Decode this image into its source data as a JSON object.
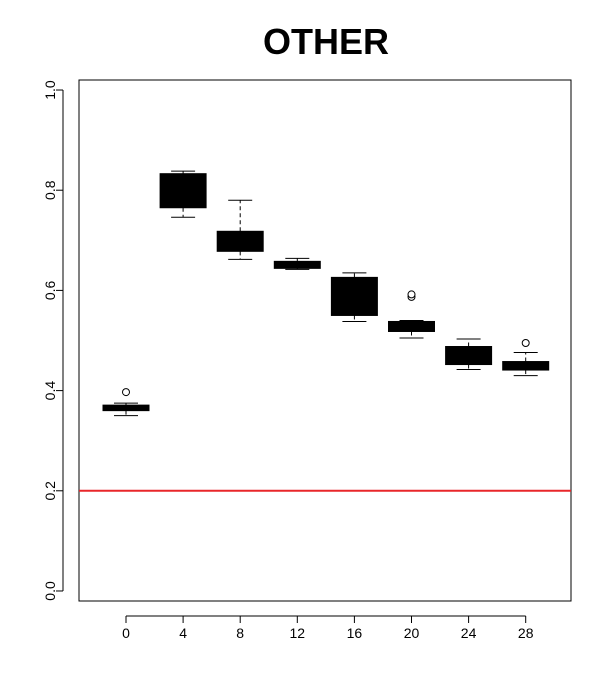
{
  "chart_data": {
    "type": "boxplot",
    "title": "OTHER",
    "xlabel": "",
    "ylabel": "",
    "categories": [
      "0",
      "4",
      "8",
      "12",
      "16",
      "20",
      "24",
      "28"
    ],
    "boxes": [
      {
        "category": "0",
        "whisker_low": 0.35,
        "q1": 0.36,
        "median": 0.365,
        "q3": 0.371,
        "whisker_high": 0.375,
        "outliers": [
          0.397
        ]
      },
      {
        "category": "4",
        "whisker_low": 0.746,
        "q1": 0.765,
        "median": 0.79,
        "q3": 0.833,
        "whisker_high": 0.838,
        "outliers": []
      },
      {
        "category": "8",
        "whisker_low": 0.662,
        "q1": 0.678,
        "median": 0.695,
        "q3": 0.718,
        "whisker_high": 0.78,
        "outliers": []
      },
      {
        "category": "12",
        "whisker_low": 0.642,
        "q1": 0.644,
        "median": 0.648,
        "q3": 0.658,
        "whisker_high": 0.664,
        "outliers": []
      },
      {
        "category": "16",
        "whisker_low": 0.538,
        "q1": 0.55,
        "median": 0.58,
        "q3": 0.626,
        "whisker_high": 0.635,
        "outliers": []
      },
      {
        "category": "20",
        "whisker_low": 0.505,
        "q1": 0.518,
        "median": 0.525,
        "q3": 0.538,
        "whisker_high": 0.54,
        "outliers": [
          0.587,
          0.592
        ]
      },
      {
        "category": "24",
        "whisker_low": 0.442,
        "q1": 0.452,
        "median": 0.465,
        "q3": 0.488,
        "whisker_high": 0.503,
        "outliers": []
      },
      {
        "category": "28",
        "whisker_low": 0.43,
        "q1": 0.441,
        "median": 0.45,
        "q3": 0.458,
        "whisker_high": 0.476,
        "outliers": [
          0.495
        ]
      }
    ],
    "reference_line": {
      "y": 0.2,
      "color": "#e8262a"
    },
    "ylim": [
      -0.02,
      1.02
    ],
    "y_ticks": [
      "0.0",
      "0.2",
      "0.4",
      "0.6",
      "0.8",
      "1.0"
    ],
    "grid": false,
    "box_color": "#000000"
  }
}
